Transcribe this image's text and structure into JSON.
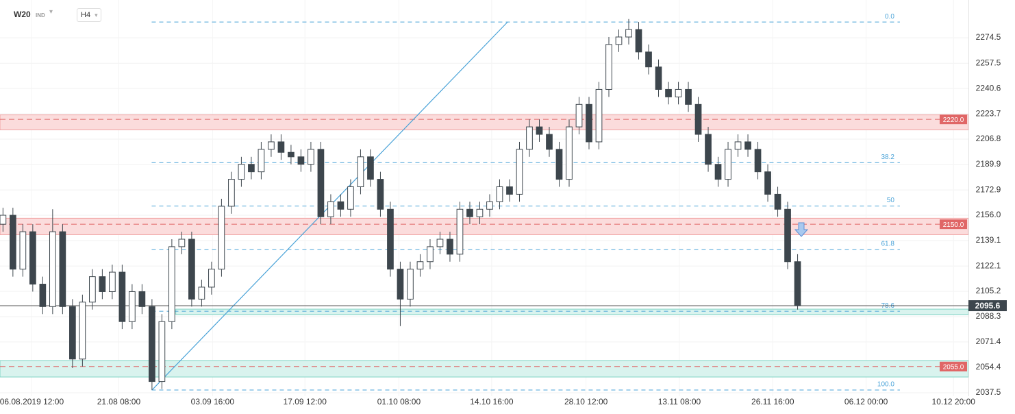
{
  "header": {
    "symbol": "W20",
    "market": "IND",
    "interval": "H4"
  },
  "chart_data": {
    "type": "candlestick",
    "open": [
      2150,
      2156,
      2120,
      2145,
      2110,
      2095,
      2145,
      2095,
      2060,
      2098,
      2115,
      2105,
      2118,
      2085,
      2105,
      2095,
      2045,
      2085,
      2135,
      2140,
      2100,
      2108,
      2120,
      2162,
      2180,
      2190,
      2185,
      2200,
      2205,
      2198,
      2195,
      2190,
      2200,
      2155,
      2165,
      2160,
      2175,
      2195,
      2180,
      2160,
      2120,
      2100,
      2120,
      2125,
      2135,
      2140,
      2130,
      2160,
      2155,
      2160,
      2165,
      2175,
      2170,
      2200,
      2215,
      2210,
      2200,
      2180,
      2215,
      2230,
      2205,
      2240,
      2270,
      2275,
      2280,
      2265,
      2255,
      2240,
      2235,
      2240,
      2230,
      2210,
      2190,
      2180,
      2200,
      2205,
      2200,
      2185,
      2170,
      2160,
      2125
    ],
    "high": [
      2161,
      2161,
      2150,
      2150,
      2115,
      2160,
      2150,
      2100,
      2103,
      2120,
      2120,
      2123,
      2123,
      2110,
      2110,
      2100,
      2090,
      2140,
      2145,
      2145,
      2113,
      2125,
      2167,
      2185,
      2195,
      2195,
      2205,
      2210,
      2210,
      2203,
      2200,
      2205,
      2205,
      2170,
      2170,
      2180,
      2200,
      2200,
      2185,
      2165,
      2125,
      2125,
      2130,
      2140,
      2145,
      2145,
      2165,
      2165,
      2165,
      2170,
      2180,
      2180,
      2205,
      2220,
      2220,
      2215,
      2205,
      2220,
      2235,
      2235,
      2245,
      2275,
      2280,
      2287,
      2285,
      2270,
      2260,
      2245,
      2245,
      2245,
      2235,
      2215,
      2195,
      2205,
      2210,
      2210,
      2205,
      2190,
      2175,
      2165,
      2130
    ],
    "low": [
      2145,
      2115,
      2115,
      2105,
      2090,
      2090,
      2090,
      2054,
      2055,
      2093,
      2100,
      2100,
      2080,
      2080,
      2090,
      2039.3,
      2040,
      2080,
      2130,
      2095,
      2095,
      2103,
      2115,
      2157,
      2175,
      2180,
      2180,
      2195,
      2193,
      2190,
      2185,
      2185,
      2150,
      2150,
      2155,
      2155,
      2170,
      2175,
      2155,
      2115,
      2082,
      2095,
      2115,
      2120,
      2130,
      2125,
      2125,
      2150,
      2150,
      2155,
      2160,
      2165,
      2165,
      2195,
      2205,
      2195,
      2175,
      2175,
      2210,
      2200,
      2200,
      2235,
      2265,
      2270,
      2260,
      2250,
      2235,
      2230,
      2230,
      2225,
      2205,
      2185,
      2175,
      2175,
      2195,
      2195,
      2180,
      2165,
      2155,
      2120,
      2093
    ],
    "close": [
      2156,
      2120,
      2145,
      2110,
      2095,
      2145,
      2095,
      2060,
      2098,
      2115,
      2105,
      2118,
      2085,
      2105,
      2095,
      2045,
      2085,
      2135,
      2140,
      2100,
      2108,
      2120,
      2162,
      2180,
      2190,
      2185,
      2200,
      2205,
      2198,
      2195,
      2190,
      2200,
      2155,
      2165,
      2160,
      2175,
      2195,
      2180,
      2160,
      2120,
      2100,
      2120,
      2125,
      2135,
      2140,
      2130,
      2160,
      2155,
      2160,
      2165,
      2175,
      2170,
      2200,
      2215,
      2210,
      2200,
      2180,
      2215,
      2230,
      2205,
      2240,
      2270,
      2275,
      2280,
      2265,
      2255,
      2240,
      2235,
      2240,
      2230,
      2210,
      2190,
      2180,
      2200,
      2205,
      2200,
      2185,
      2170,
      2160,
      2125,
      2095.6
    ],
    "up_color": "#ffffff",
    "down_color": "#3d464d",
    "xlim": [
      -0.3,
      97.2
    ],
    "xticks": [
      {
        "value": 2.9,
        "label": "06.08.2019 12:00"
      },
      {
        "value": 11.66,
        "label": "21.08 08:00"
      },
      {
        "value": 21.1,
        "label": "03.09 16:00"
      },
      {
        "value": 30.4,
        "label": "17.09 12:00"
      },
      {
        "value": 39.86,
        "label": "01.10 08:00"
      },
      {
        "value": 49.2,
        "label": "14.10 16:00"
      },
      {
        "value": 58.7,
        "label": "28.10 12:00"
      },
      {
        "value": 68.1,
        "label": "13.11 08:00"
      },
      {
        "value": 77.5,
        "label": "26.11 16:00"
      },
      {
        "value": 86.9,
        "label": "06.12 00:00"
      },
      {
        "value": 95.7,
        "label": "10.12 20:00"
      }
    ],
    "ylim": [
      2035.2,
      2299.7
    ],
    "yticks": [
      2274.5,
      2257.5,
      2240.6,
      2223.7,
      2206.8,
      2189.9,
      2172.9,
      {
        "value": 2156,
        "label": "2156.0"
      },
      2139.1,
      2122.1,
      2105.2,
      2088.3,
      2071.4,
      2054.4,
      2037.5
    ],
    "grid": true,
    "last_price": 2095.6,
    "zones": [
      {
        "level": {
          "value": 2220,
          "label": "2220.0"
        },
        "low": 2213,
        "high": 2223,
        "color": "#fbdcdc"
      },
      {
        "level": {
          "value": 2150,
          "label": "2150.0"
        },
        "low": 2143,
        "high": 2154,
        "color": "#fbdcdc"
      },
      {
        "level": {
          "value": 2055,
          "label": "2055.0"
        },
        "low": 2048,
        "high": 2059,
        "color": "#d9f3ee"
      },
      {
        "low": 2089.7,
        "high": 2093.3,
        "x_start": 17.4,
        "color": "#d9f3ee"
      }
    ],
    "fibonacci": {
      "high": 2285,
      "low": 2039.3,
      "x_start": 14.97,
      "x_end": 90.3,
      "color": "#4aa3d8",
      "levels": [
        {
          "value": 0,
          "label": "0.0"
        },
        38.2,
        50,
        61.8,
        78.6,
        {
          "value": 100,
          "label": "100.0"
        }
      ]
    },
    "trendline": {
      "x": [
        15,
        50.8
      ],
      "y": [
        2039.3,
        2285
      ],
      "color": "#4aa3d8"
    }
  }
}
